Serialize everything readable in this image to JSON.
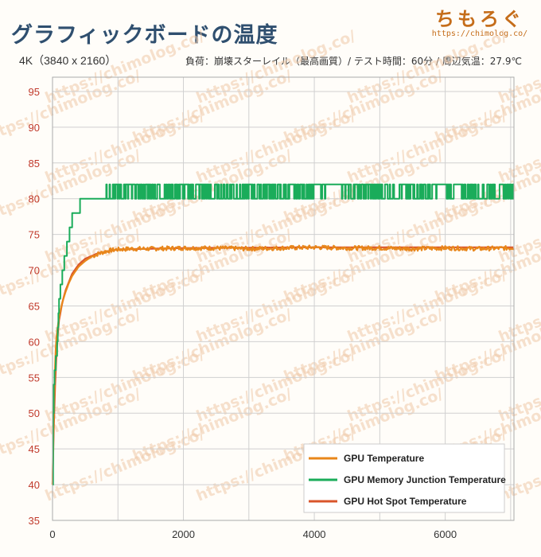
{
  "header": {
    "title": "グラフィックボードの温度",
    "resolution": "4K（3840 x 2160）",
    "conditions": "負荷：崩壊スターレイル（最高画質）/ テスト時間：60分 / 周辺気温：27.9℃",
    "brand_name": "ちもろぐ",
    "brand_url": "https://chimolog.co/",
    "watermark_text": "https://chimolog.co/"
  },
  "colors": {
    "gpu_temp": "#e8861a",
    "memory_junction": "#1aac5a",
    "hot_spot": "#d9552b",
    "y_tick": "#c0392b",
    "x_tick": "#333333",
    "grid": "#d0d0d0"
  },
  "chart_data": {
    "type": "line",
    "title": "グラフィックボードの温度",
    "xlabel": "",
    "ylabel": "",
    "xlim": [
      0,
      7050
    ],
    "ylim": [
      35,
      97
    ],
    "x_ticks": [
      0,
      2000,
      4000,
      6000
    ],
    "x_tick_labels": [
      "0",
      "2000",
      "4000",
      "6000"
    ],
    "y_ticks": [
      35,
      40,
      45,
      50,
      55,
      60,
      65,
      70,
      75,
      80,
      85,
      90,
      95
    ],
    "y_tick_labels": [
      "35",
      "40",
      "45",
      "50",
      "55",
      "60",
      "65",
      "70",
      "75",
      "80",
      "85",
      "90",
      "95"
    ],
    "grid": true,
    "legend_position": "bottom-right",
    "series": [
      {
        "name": "GPU Temperature",
        "x": [
          0,
          10,
          20,
          30,
          40,
          50,
          60,
          80,
          100,
          150,
          200,
          250,
          300,
          400,
          500,
          600,
          700,
          800,
          900,
          1000,
          1200,
          1500,
          2000,
          2500,
          3000,
          3500,
          4000,
          4500,
          5000,
          5500,
          6000,
          6500,
          7000,
          7050
        ],
        "y": [
          40,
          46,
          50,
          54,
          57,
          59,
          60.5,
          62,
          63.5,
          65.5,
          67,
          68.2,
          69.2,
          70.5,
          71.3,
          71.9,
          72.3,
          72.6,
          72.8,
          72.9,
          73,
          73,
          73.1,
          73.1,
          73,
          73.1,
          73.2,
          73.1,
          73.1,
          73,
          73.1,
          73,
          73.1,
          73.2
        ]
      },
      {
        "name": "GPU Memory Junction Temperature",
        "x": [
          0,
          10,
          20,
          40,
          60,
          80,
          100,
          130,
          160,
          200,
          240,
          280,
          320,
          380,
          450,
          520,
          600,
          680,
          760,
          820,
          7050
        ],
        "y": [
          40,
          50,
          54,
          56,
          58,
          62,
          66,
          68,
          70,
          72,
          74,
          76,
          78,
          78,
          80,
          80,
          80,
          80,
          80,
          81,
          81
        ]
      },
      {
        "name": "GPU Hot Spot Temperature",
        "x": [
          0,
          20,
          40,
          60,
          80,
          100,
          150,
          200,
          300,
          400,
          500,
          700,
          1000,
          2000,
          4000,
          7050
        ],
        "y": [
          40,
          48,
          54,
          58,
          61,
          63,
          65.5,
          67.2,
          69.5,
          70.8,
          71.6,
          72.4,
          72.9,
          73.1,
          73.2,
          73.2
        ]
      }
    ]
  }
}
